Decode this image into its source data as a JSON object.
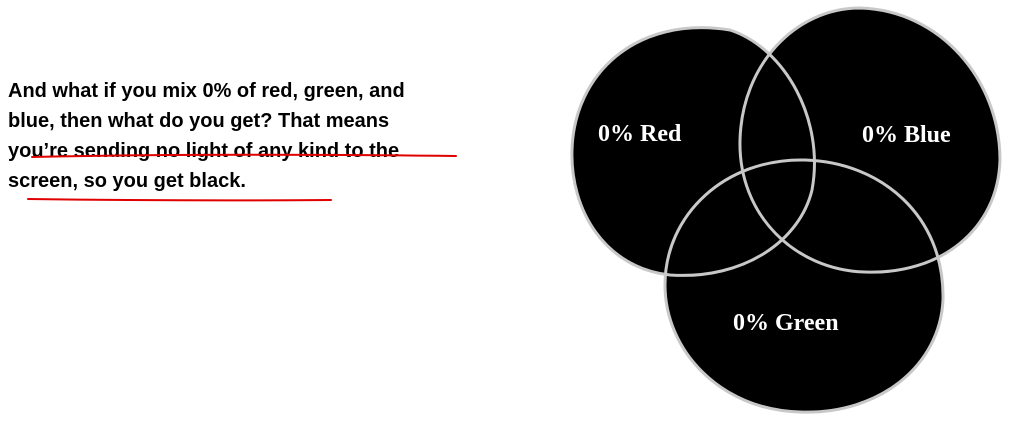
{
  "explanation": {
    "lines": [
      "And what if you mix 0% of red, green, and",
      "blue, then what do you get? That means",
      "you’re sending no light of any kind to the",
      "screen, so you get black."
    ]
  },
  "venn": {
    "circles": [
      {
        "name": "red",
        "label": "0% Red"
      },
      {
        "name": "blue",
        "label": "0% Blue"
      },
      {
        "name": "green",
        "label": "0% Green"
      }
    ]
  },
  "colors": {
    "text": "#000000",
    "circle_fill": "#000000",
    "circle_outline": "#c8c8c8",
    "label": "#ffffff",
    "underline": "#e00000"
  }
}
